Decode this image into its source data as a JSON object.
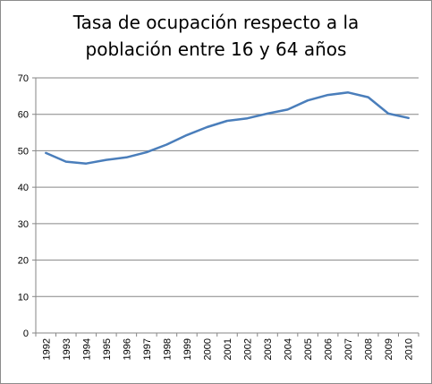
{
  "chart_data": {
    "type": "line",
    "title_line1": "Tasa de ocupación respecto a la",
    "title_line2": "población entre 16 y 64 años",
    "xlabel": "",
    "ylabel": "",
    "ylim": [
      0,
      70
    ],
    "ytick_step": 10,
    "grid": true,
    "legend": "none",
    "line_color": "#4a7ebb",
    "x": [
      "1992",
      "1993",
      "1994",
      "1995",
      "1996",
      "1997",
      "1998",
      "1999",
      "2000",
      "2001",
      "2002",
      "2003",
      "2004",
      "2005",
      "2006",
      "2007",
      "2008",
      "2009",
      "2010"
    ],
    "series": [
      {
        "values": [
          49.4,
          47.0,
          46.5,
          47.5,
          48.2,
          49.6,
          51.7,
          54.3,
          56.5,
          58.2,
          58.9,
          60.2,
          61.3,
          63.8,
          65.3,
          66.0,
          64.7,
          60.2,
          59.0
        ]
      }
    ]
  }
}
